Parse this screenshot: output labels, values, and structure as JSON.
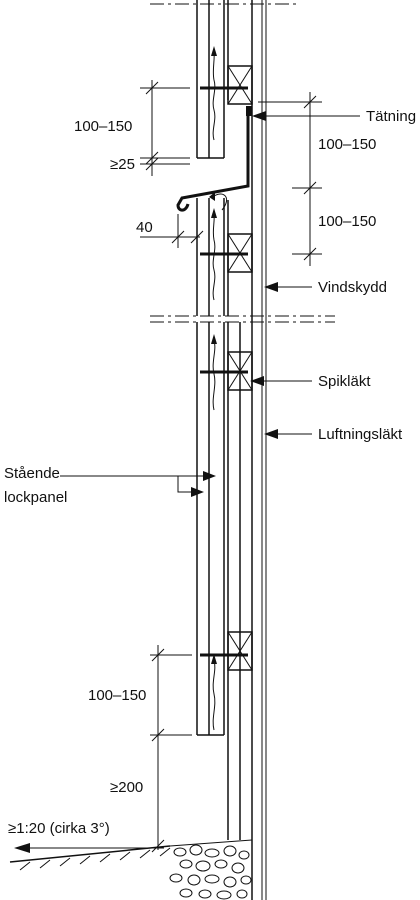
{
  "labels": {
    "tatning": "Tätning",
    "vindskydd": "Vindskydd",
    "spiklakt": "Spikläkt",
    "luftningslakt": "Luftningsläkt",
    "staende_line1": "Stående",
    "staende_line2": "lockpanel"
  },
  "dimensions": {
    "overlap_upper": "100–150",
    "min_gap": "≥25",
    "right_upper": "100–150",
    "right_lower": "100–150",
    "drip_offset": "40",
    "overlap_lower": "100–150",
    "ground_clearance": "≥200",
    "slope": "≥1:20 (cirka 3°)"
  },
  "colors": {
    "line": "#111111",
    "background": "#ffffff"
  }
}
